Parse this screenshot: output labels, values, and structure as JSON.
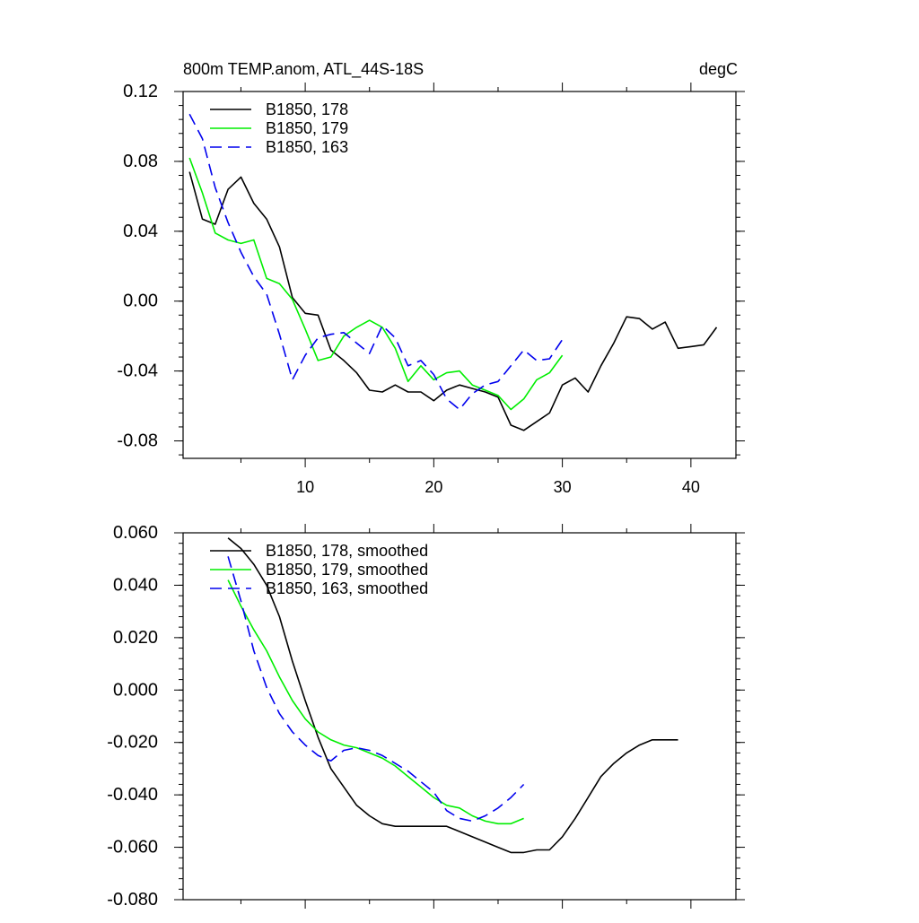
{
  "chart_data": [
    {
      "type": "line",
      "title": "800m TEMP.anom, ATL_44S-18S",
      "title_right": "degC",
      "xlim": [
        0.5,
        43.5
      ],
      "ylim": [
        -0.09,
        0.12
      ],
      "xticks": [
        10,
        20,
        30,
        40
      ],
      "xtick_labels": [
        "10",
        "20",
        "30",
        "40"
      ],
      "yticks": [
        0.12,
        0.08,
        0.04,
        0.0,
        -0.04,
        -0.08
      ],
      "ytick_labels": [
        "0.12",
        "0.08",
        "0.04",
        "0.00",
        "-0.04",
        "-0.08"
      ],
      "legend_position": "top-left",
      "series": [
        {
          "name": "B1850, 178",
          "color": "#000000",
          "dash": "solid",
          "x": [
            1,
            2,
            3,
            4,
            5,
            6,
            7,
            8,
            9,
            10,
            11,
            12,
            13,
            14,
            15,
            16,
            17,
            18,
            19,
            20,
            21,
            22,
            23,
            24,
            25,
            26,
            27,
            28,
            29,
            30,
            31,
            32,
            33,
            34,
            35,
            36,
            37,
            38,
            39,
            40,
            41,
            42
          ],
          "y": [
            0.074,
            0.047,
            0.044,
            0.064,
            0.071,
            0.056,
            0.047,
            0.031,
            0.002,
            -0.007,
            -0.008,
            -0.028,
            -0.034,
            -0.041,
            -0.051,
            -0.052,
            -0.048,
            -0.052,
            -0.052,
            -0.057,
            -0.051,
            -0.048,
            -0.05,
            -0.052,
            -0.055,
            -0.071,
            -0.074,
            -0.069,
            -0.064,
            -0.048,
            -0.044,
            -0.052,
            -0.037,
            -0.024,
            -0.009,
            -0.01,
            -0.016,
            -0.012,
            -0.027,
            -0.026,
            -0.025,
            -0.015
          ]
        },
        {
          "name": "B1850, 179",
          "color": "#00ee00",
          "dash": "solid",
          "x": [
            1,
            2,
            3,
            4,
            5,
            6,
            7,
            8,
            9,
            10,
            11,
            12,
            13,
            14,
            15,
            16,
            17,
            18,
            19,
            20,
            21,
            22,
            23,
            24,
            25,
            26,
            27,
            28,
            29,
            30
          ],
          "y": [
            0.082,
            0.062,
            0.039,
            0.035,
            0.033,
            0.035,
            0.013,
            0.01,
            0.001,
            -0.016,
            -0.034,
            -0.032,
            -0.02,
            -0.015,
            -0.011,
            -0.015,
            -0.027,
            -0.046,
            -0.037,
            -0.045,
            -0.041,
            -0.04,
            -0.048,
            -0.051,
            -0.054,
            -0.062,
            -0.056,
            -0.045,
            -0.041,
            -0.031
          ]
        },
        {
          "name": "B1850, 163",
          "color": "#0000ee",
          "dash": "dashed",
          "x": [
            1,
            2,
            3,
            4,
            5,
            6,
            7,
            8,
            9,
            10,
            11,
            12,
            13,
            14,
            15,
            16,
            17,
            18,
            19,
            20,
            21,
            22,
            23,
            24,
            25,
            26,
            27,
            28,
            29,
            30
          ],
          "y": [
            0.107,
            0.093,
            0.065,
            0.045,
            0.028,
            0.014,
            0.004,
            -0.019,
            -0.045,
            -0.031,
            -0.021,
            -0.019,
            -0.018,
            -0.024,
            -0.03,
            -0.014,
            -0.021,
            -0.037,
            -0.034,
            -0.042,
            -0.056,
            -0.062,
            -0.053,
            -0.048,
            -0.046,
            -0.037,
            -0.028,
            -0.034,
            -0.033,
            -0.022
          ]
        }
      ]
    },
    {
      "type": "line",
      "title": "",
      "xlim": [
        0.5,
        43.5
      ],
      "ylim": [
        -0.08,
        0.06
      ],
      "xticks": [
        10,
        20,
        30,
        40
      ],
      "xtick_labels": [],
      "yticks": [
        0.06,
        0.04,
        0.02,
        0.0,
        -0.02,
        -0.04,
        -0.06,
        -0.08
      ],
      "ytick_labels": [
        "0.060",
        "0.040",
        "0.020",
        "0.000",
        "-0.020",
        "-0.040",
        "-0.060",
        "-0.080"
      ],
      "legend_position": "top-left",
      "series": [
        {
          "name": "B1850, 178, smoothed",
          "color": "#000000",
          "dash": "solid",
          "x": [
            4,
            5,
            6,
            7,
            8,
            9,
            10,
            11,
            12,
            13,
            14,
            15,
            16,
            17,
            18,
            19,
            20,
            21,
            22,
            23,
            24,
            25,
            26,
            27,
            28,
            29,
            30,
            31,
            32,
            33,
            34,
            35,
            36,
            37,
            38,
            39
          ],
          "y": [
            0.058,
            0.054,
            0.048,
            0.04,
            0.028,
            0.011,
            -0.004,
            -0.018,
            -0.03,
            -0.037,
            -0.044,
            -0.048,
            -0.051,
            -0.052,
            -0.052,
            -0.052,
            -0.052,
            -0.052,
            -0.054,
            -0.056,
            -0.058,
            -0.06,
            -0.062,
            -0.062,
            -0.061,
            -0.061,
            -0.056,
            -0.049,
            -0.041,
            -0.033,
            -0.028,
            -0.024,
            -0.021,
            -0.019,
            -0.019,
            -0.019
          ]
        },
        {
          "name": "B1850, 179, smoothed",
          "color": "#00ee00",
          "dash": "solid",
          "x": [
            4,
            5,
            6,
            7,
            8,
            9,
            10,
            11,
            12,
            13,
            14,
            15,
            16,
            17,
            18,
            19,
            20,
            21,
            22,
            23,
            24,
            25,
            26,
            27
          ],
          "y": [
            0.042,
            0.032,
            0.023,
            0.015,
            0.005,
            -0.004,
            -0.011,
            -0.016,
            -0.019,
            -0.021,
            -0.022,
            -0.024,
            -0.026,
            -0.029,
            -0.033,
            -0.037,
            -0.041,
            -0.044,
            -0.045,
            -0.048,
            -0.05,
            -0.051,
            -0.051,
            -0.049
          ]
        },
        {
          "name": "B1850, 163, smoothed",
          "color": "#0000ee",
          "dash": "dashed",
          "x": [
            4,
            5,
            6,
            7,
            8,
            9,
            10,
            11,
            12,
            13,
            14,
            15,
            16,
            17,
            18,
            19,
            20,
            21,
            22,
            23,
            24,
            25,
            26,
            27
          ],
          "y": [
            0.051,
            0.034,
            0.015,
            0.001,
            -0.009,
            -0.016,
            -0.021,
            -0.025,
            -0.027,
            -0.023,
            -0.022,
            -0.023,
            -0.025,
            -0.028,
            -0.031,
            -0.035,
            -0.039,
            -0.046,
            -0.049,
            -0.05,
            -0.048,
            -0.045,
            -0.041,
            -0.036
          ]
        }
      ]
    }
  ]
}
